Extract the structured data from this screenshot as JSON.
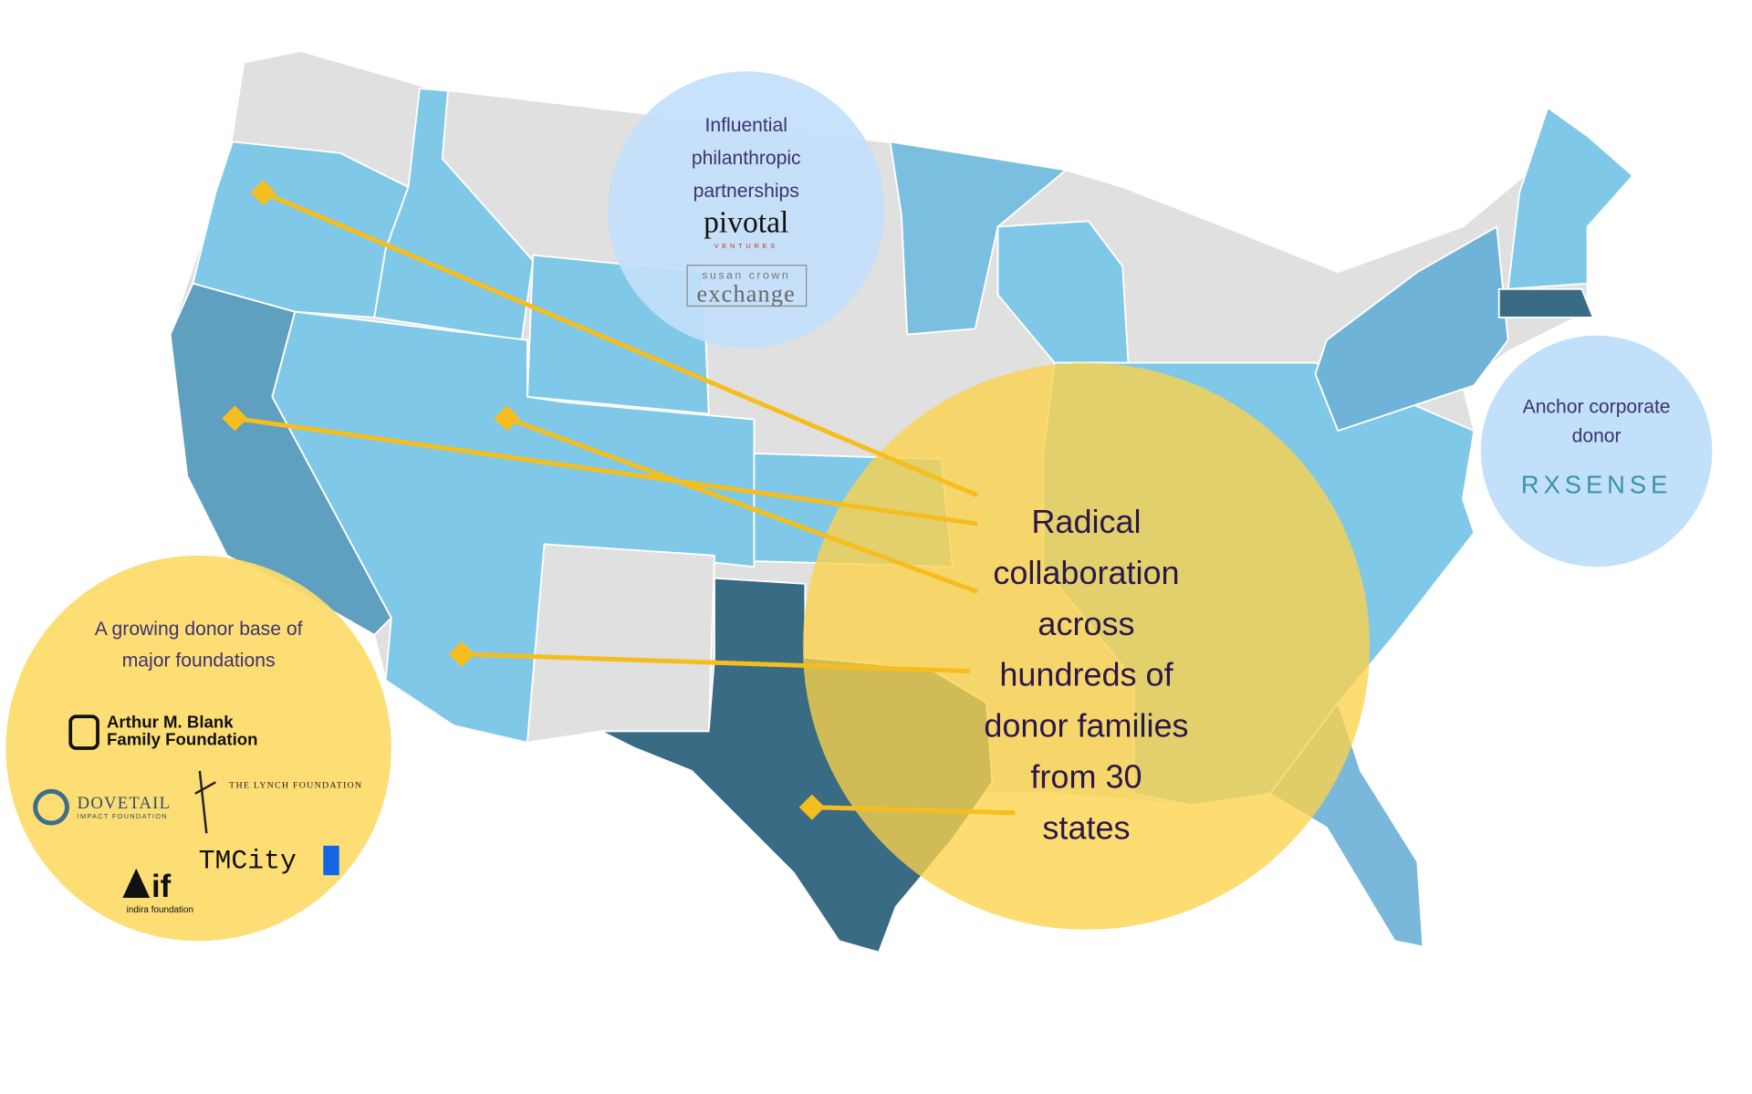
{
  "partnerships": {
    "heading": [
      "Influential",
      "philanthropic",
      "partnerships"
    ],
    "logos": {
      "pivotal": "pivotal",
      "pivotal_sub": "VENTURES",
      "susan_crown": "susan crown",
      "exchange": "exchange"
    }
  },
  "corporate": {
    "heading": [
      "Anchor corporate",
      "donor"
    ],
    "logo": "RXSENSE"
  },
  "foundations": {
    "heading": [
      "A growing donor base of",
      "major foundations"
    ],
    "logos": {
      "blank": [
        "Arthur M. Blank",
        "Family Foundation"
      ],
      "dovetail": "DOVETAIL",
      "dovetail_sub": "IMPACT FOUNDATION",
      "lynch": "THE LYNCH FOUNDATION",
      "tmcity": "TMCity",
      "indira": "if",
      "indira_sub": "indira foundation"
    }
  },
  "main": {
    "lines": [
      "Radical",
      "collaboration",
      "across",
      "hundreds of",
      "donor families",
      "from 30",
      "states"
    ]
  }
}
